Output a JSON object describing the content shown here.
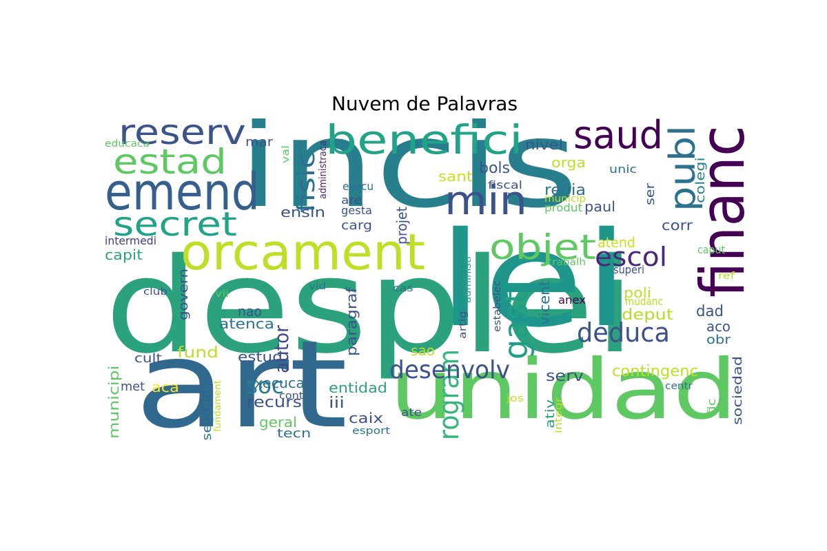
{
  "title": "Nuvem de Palavras",
  "palette": [
    "#440154",
    "#3b528b",
    "#21918c",
    "#5ec962",
    "#fde725"
  ],
  "words": [
    {
      "text": "desplei",
      "color": "#2ca17d"
    },
    {
      "text": "incis",
      "color": "#277f8e"
    },
    {
      "text": "lei",
      "color": "#1f968b"
    },
    {
      "text": "art",
      "color": "#31688e"
    },
    {
      "text": "unidad",
      "color": "#5ec962"
    },
    {
      "text": "orcament",
      "color": "#bddf26"
    },
    {
      "text": "emend",
      "color": "#355f8d"
    },
    {
      "text": "benefici",
      "color": "#20a386"
    },
    {
      "text": "financ",
      "color": "#440154"
    },
    {
      "text": "reserv",
      "color": "#3b528b"
    },
    {
      "text": "estad",
      "color": "#5ec962"
    },
    {
      "text": "secret",
      "color": "#20a386"
    },
    {
      "text": "saud",
      "color": "#440154"
    },
    {
      "text": "min",
      "color": "#3b528b"
    },
    {
      "text": "publ",
      "color": "#2c728e"
    },
    {
      "text": "objet",
      "color": "#5ec962"
    },
    {
      "text": "gast",
      "color": "#1f9e89"
    },
    {
      "text": "program",
      "color": "#35b779"
    },
    {
      "text": "deduca",
      "color": "#3b528b"
    },
    {
      "text": "desenvolv",
      "color": "#3b528b"
    },
    {
      "text": "escol",
      "color": "#482878"
    },
    {
      "text": "fisic",
      "color": "#2c728e"
    },
    {
      "text": "contingenc",
      "color": "#bddf26"
    },
    {
      "text": "autor",
      "color": "#3e4989"
    },
    {
      "text": "soc",
      "color": "#287c8e"
    },
    {
      "text": "recurs",
      "color": "#3b528b"
    },
    {
      "text": "deput",
      "color": "#b5de2b"
    },
    {
      "text": "bols",
      "color": "#3b528b"
    },
    {
      "text": "regia",
      "color": "#2c728e"
    },
    {
      "text": "nivel",
      "color": "#3b528b"
    },
    {
      "text": "orga",
      "color": "#bddf26"
    },
    {
      "text": "sant",
      "color": "#cae11f"
    },
    {
      "text": "paul",
      "color": "#3b528b"
    },
    {
      "text": "corr",
      "color": "#3b528b"
    },
    {
      "text": "colegi",
      "color": "#26828e"
    },
    {
      "text": "ser",
      "color": "#3b528b"
    },
    {
      "text": "unic",
      "color": "#2c728e"
    },
    {
      "text": "municip",
      "color": "#bddf26"
    },
    {
      "text": "produt",
      "color": "#5ec962"
    },
    {
      "text": "fiscal",
      "color": "#3b528b"
    },
    {
      "text": "projet",
      "color": "#3b528b"
    },
    {
      "text": "execu",
      "color": "#2c728e"
    },
    {
      "text": "are",
      "color": "#3b528b"
    },
    {
      "text": "gesta",
      "color": "#3b528b"
    },
    {
      "text": "carg",
      "color": "#3b528b"
    },
    {
      "text": "ensin",
      "color": "#3b528b"
    },
    {
      "text": "administraca",
      "color": "#482878"
    },
    {
      "text": "val",
      "color": "#5ec962"
    },
    {
      "text": "educaca",
      "color": "#5ec962"
    },
    {
      "text": "mar",
      "color": "#3b528b"
    },
    {
      "text": "capit",
      "color": "#2ca17d"
    },
    {
      "text": "intermedi",
      "color": "#443983"
    },
    {
      "text": "atend",
      "color": "#cae11f"
    },
    {
      "text": "superi",
      "color": "#3b528b"
    },
    {
      "text": "trabalh",
      "color": "#5ec962"
    },
    {
      "text": "caput",
      "color": "#5ec962"
    },
    {
      "text": "ref",
      "color": "#bddf26"
    },
    {
      "text": "poli",
      "color": "#bddf26"
    },
    {
      "text": "mudanc",
      "color": "#bddf26"
    },
    {
      "text": "anex",
      "color": "#440154"
    },
    {
      "text": "vicent",
      "color": "#2c728e"
    },
    {
      "text": "estabelec",
      "color": "#3b528b"
    },
    {
      "text": "administr",
      "color": "#2ca17d"
    },
    {
      "text": "artig",
      "color": "#3b528b"
    },
    {
      "text": "dad",
      "color": "#3b528b"
    },
    {
      "text": "aco",
      "color": "#3b528b"
    },
    {
      "text": "obr",
      "color": "#2c728e"
    },
    {
      "text": "sociedad",
      "color": "#3b528b"
    },
    {
      "text": "fic",
      "color": "#5ec962"
    },
    {
      "text": "centr",
      "color": "#2c728e"
    },
    {
      "text": "govern",
      "color": "#3b528b"
    },
    {
      "text": "nao",
      "color": "#3b528b"
    },
    {
      "text": "atenca",
      "color": "#2c728e"
    },
    {
      "text": "paragraf",
      "color": "#3b528b"
    },
    {
      "text": "sao",
      "color": "#bddf26"
    },
    {
      "text": "club",
      "color": "#3b528b"
    },
    {
      "text": "vii",
      "color": "#5ec962"
    },
    {
      "text": "vid",
      "color": "#2c728e"
    },
    {
      "text": "cas",
      "color": "#2c728e"
    },
    {
      "text": "fund",
      "color": "#bddf26"
    },
    {
      "text": "estud",
      "color": "#3b528b"
    },
    {
      "text": "cult",
      "color": "#3b528b"
    },
    {
      "text": "municipi",
      "color": "#5ec962"
    },
    {
      "text": "met",
      "color": "#3b528b"
    },
    {
      "text": "aca",
      "color": "#fde725"
    },
    {
      "text": "seguint",
      "color": "#2c728e"
    },
    {
      "text": "fundament",
      "color": "#bddf26"
    },
    {
      "text": "execuca",
      "color": "#2c728e"
    },
    {
      "text": "entidad",
      "color": "#2ca17d"
    },
    {
      "text": "iii",
      "color": "#3b528b"
    },
    {
      "text": "geral",
      "color": "#5ec962"
    },
    {
      "text": "tecn",
      "color": "#2c728e"
    },
    {
      "text": "cont",
      "color": "#3b528b"
    },
    {
      "text": "caix",
      "color": "#3b528b"
    },
    {
      "text": "esport",
      "color": "#2c728e"
    },
    {
      "text": "serv",
      "color": "#3b528b"
    },
    {
      "text": "ativ",
      "color": "#2ca17d"
    },
    {
      "text": "integr",
      "color": "#bddf26"
    },
    {
      "text": "jos",
      "color": "#bddf26"
    },
    {
      "text": "ate",
      "color": "#3b528b"
    }
  ]
}
